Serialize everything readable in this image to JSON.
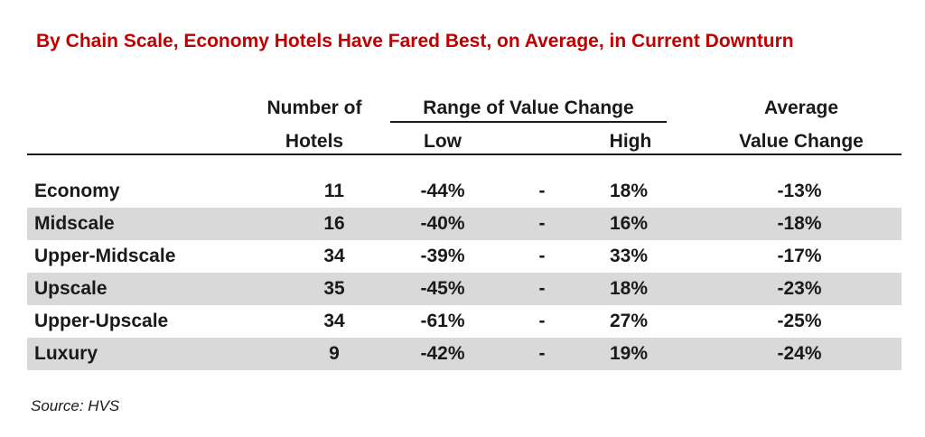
{
  "title": "By Chain Scale, Economy Hotels Have Fared Best, on Average, in Current Downturn",
  "headers": {
    "number_line1": "Number of",
    "number_line2": "Hotels",
    "range": "Range of Value Change",
    "low": "Low",
    "high": "High",
    "avg_line1": "Average",
    "avg_line2": "Value Change"
  },
  "rows": [
    {
      "label": "Economy",
      "number": "11",
      "low": "-44%",
      "dash": "-",
      "high": "18%",
      "avg": "-13%"
    },
    {
      "label": "Midscale",
      "number": "16",
      "low": "-40%",
      "dash": "-",
      "high": "16%",
      "avg": "-18%"
    },
    {
      "label": "Upper-Midscale",
      "number": "34",
      "low": "-39%",
      "dash": "-",
      "high": "33%",
      "avg": "-17%"
    },
    {
      "label": "Upscale",
      "number": "35",
      "low": "-45%",
      "dash": "-",
      "high": "18%",
      "avg": "-23%"
    },
    {
      "label": "Upper-Upscale",
      "number": "34",
      "low": "-61%",
      "dash": "-",
      "high": "27%",
      "avg": "-25%"
    },
    {
      "label": "Luxury",
      "number": "9",
      "low": "-42%",
      "dash": "-",
      "high": "19%",
      "avg": "-24%"
    }
  ],
  "source": "Source: HVS",
  "colors": {
    "title": "#c00000",
    "row_shade": "#d9d9d9",
    "text": "#1a1a1a"
  },
  "chart_data": {
    "type": "table",
    "title": "By Chain Scale, Economy Hotels Have Fared Best, on Average, in Current Downturn",
    "columns": [
      "",
      "Number of Hotels",
      "Low",
      "High",
      "Average Value Change"
    ],
    "categories": [
      "Economy",
      "Midscale",
      "Upper-Midscale",
      "Upscale",
      "Upper-Upscale",
      "Luxury"
    ],
    "series": [
      {
        "name": "Number of Hotels",
        "values": [
          11,
          16,
          34,
          35,
          34,
          9
        ]
      },
      {
        "name": "Low",
        "values": [
          -44,
          -40,
          -39,
          -45,
          -61,
          -42
        ]
      },
      {
        "name": "High",
        "values": [
          18,
          16,
          33,
          18,
          27,
          19
        ]
      },
      {
        "name": "Average Value Change",
        "values": [
          -13,
          -18,
          -17,
          -23,
          -25,
          -24
        ]
      }
    ]
  }
}
